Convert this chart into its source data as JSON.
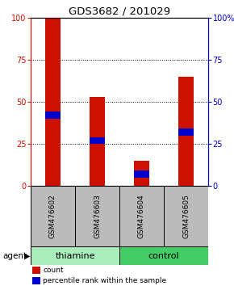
{
  "title": "GDS3682 / 201029",
  "samples": [
    "GSM476602",
    "GSM476603",
    "GSM476604",
    "GSM476605"
  ],
  "count_values": [
    100,
    53,
    15,
    65
  ],
  "percentile_values": [
    42,
    27,
    7,
    32
  ],
  "bar_color": "#cc1100",
  "percentile_color": "#0000cc",
  "groups": [
    {
      "label": "thiamine",
      "indices": [
        0,
        1
      ],
      "color": "#aaeebb"
    },
    {
      "label": "control",
      "indices": [
        2,
        3
      ],
      "color": "#44cc66"
    }
  ],
  "ylim": [
    0,
    100
  ],
  "yticks": [
    0,
    25,
    50,
    75,
    100
  ],
  "grid_values": [
    25,
    50,
    75
  ],
  "left_axis_color": "#cc1100",
  "right_axis_color": "#0000cc",
  "bar_width": 0.35,
  "agent_label": "agent",
  "legend_items": [
    {
      "label": "count",
      "color": "#cc1100"
    },
    {
      "label": "percentile rank within the sample",
      "color": "#0000cc"
    }
  ],
  "bg_color": "#ffffff",
  "sample_row_bg": "#bbbbbb",
  "right_ytick_labels": [
    "0",
    "25",
    "50",
    "75",
    "100%"
  ]
}
